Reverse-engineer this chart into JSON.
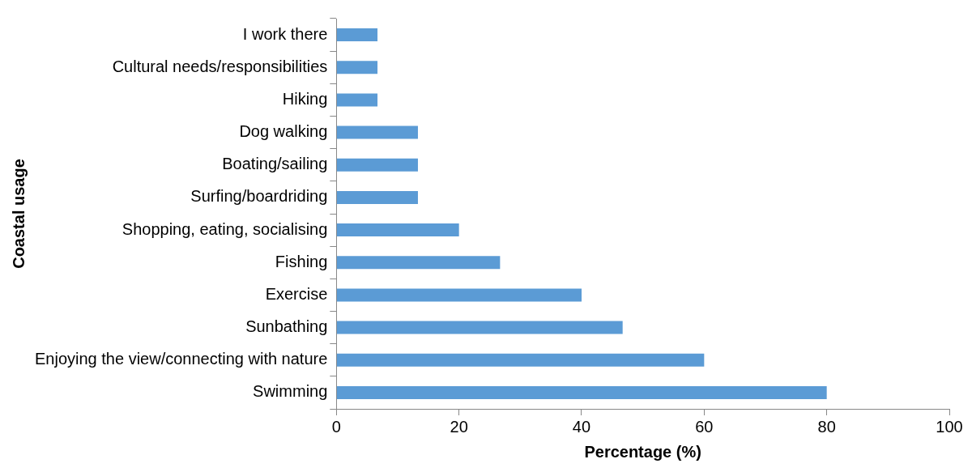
{
  "chart_data": {
    "type": "bar",
    "orientation": "horizontal",
    "xlabel": "Percentage (%)",
    "ylabel": "Coastal usage",
    "categories": [
      "I work there",
      "Cultural needs/responsibilities",
      "Hiking",
      "Dog walking",
      "Boating/sailing",
      "Surfing/boardriding",
      "Shopping, eating, socialising",
      "Fishing",
      "Exercise",
      "Sunbathing",
      "Enjoying the view/connecting with nature",
      "Swimming"
    ],
    "values": [
      6.7,
      6.7,
      6.7,
      13.3,
      13.3,
      13.3,
      20,
      26.7,
      40,
      46.7,
      60,
      80
    ],
    "color": "#5b9bd5",
    "xlim": [
      0,
      100
    ],
    "xticks": [
      0,
      20,
      40,
      60,
      80,
      100
    ],
    "grid": false,
    "legend": false
  }
}
